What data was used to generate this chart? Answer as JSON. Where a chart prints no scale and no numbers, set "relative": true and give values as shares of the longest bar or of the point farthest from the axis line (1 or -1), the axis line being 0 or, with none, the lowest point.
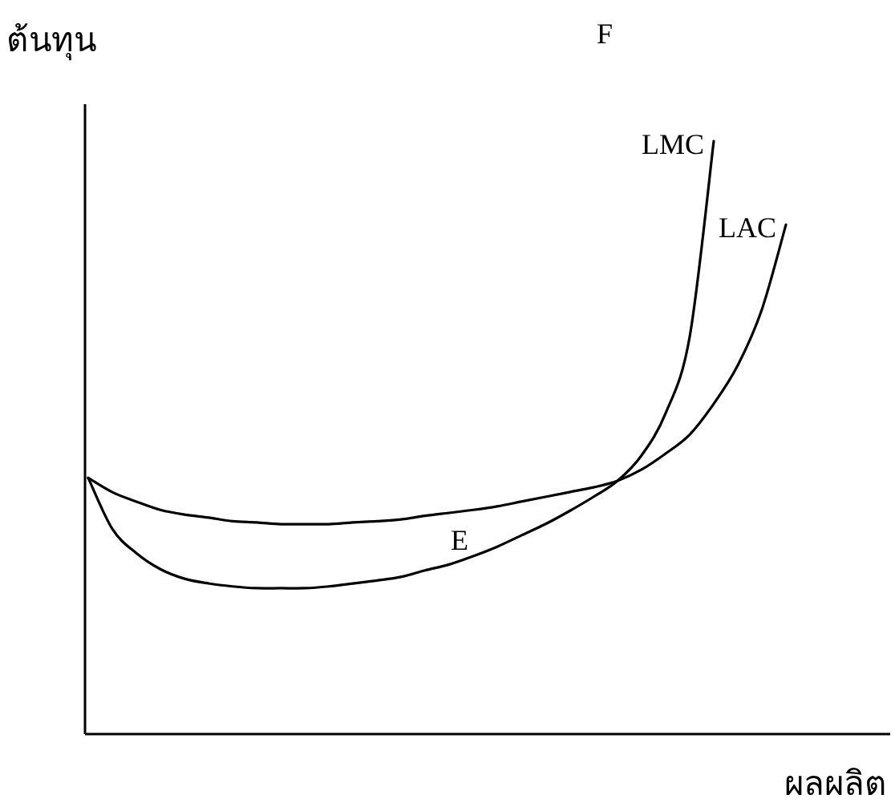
{
  "chart_data": {
    "type": "line",
    "relative": true,
    "xlabel": "ผลผลิต",
    "ylabel": "ต้นทุน",
    "annotations": [
      "F",
      "E"
    ],
    "categories": [
      null,
      null,
      null,
      null,
      null,
      null,
      null,
      null,
      null,
      null,
      null,
      null,
      null,
      null,
      null,
      null,
      null,
      null,
      null,
      null,
      null,
      null,
      null,
      null,
      null,
      null,
      null,
      null,
      null,
      null
    ],
    "series": [
      {
        "name": "LMC",
        "color": "#000000",
        "values": [
          0.432,
          0.346,
          0.305,
          0.278,
          0.262,
          0.254,
          0.249,
          0.246,
          0.246,
          0.246,
          0.249,
          0.254,
          0.259,
          0.265,
          0.276,
          0.286,
          0.3,
          0.316,
          0.335,
          0.354,
          0.376,
          0.4,
          0.427,
          0.47,
          0.541,
          0.67,
          1,
          null,
          null,
          null
        ]
      },
      {
        "name": "LAC",
        "color": "#000000",
        "values": [
          0.432,
          0.408,
          0.392,
          0.378,
          0.37,
          0.365,
          0.359,
          0.357,
          0.354,
          0.354,
          0.354,
          0.357,
          0.359,
          0.362,
          0.368,
          0.373,
          0.378,
          0.384,
          0.392,
          0.4,
          0.408,
          0.416,
          0.427,
          0.446,
          0.473,
          0.505,
          0.557,
          0.622,
          0.716,
          0.859
        ]
      }
    ]
  }
}
